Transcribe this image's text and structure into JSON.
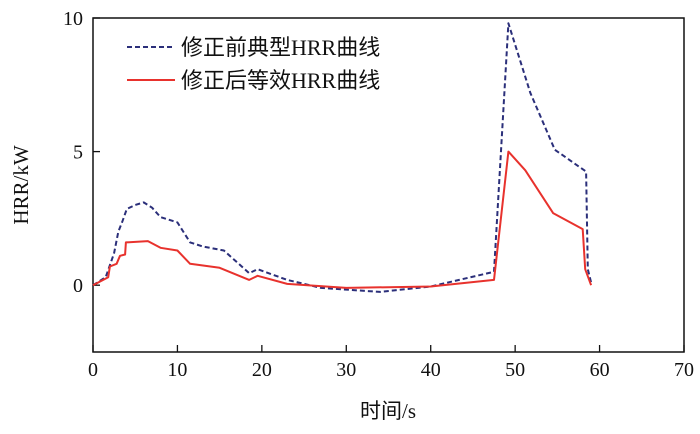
{
  "chart_data": {
    "type": "line",
    "title": "",
    "xlabel": "时间/s",
    "ylabel": "HRR/kW",
    "xlim": [
      0,
      70
    ],
    "ylim": [
      -2.5,
      10
    ],
    "xticks": [
      0,
      10,
      20,
      30,
      40,
      50,
      60,
      70
    ],
    "yticks": [
      0,
      5,
      10
    ],
    "grid": false,
    "legend_position": "top-left",
    "series": [
      {
        "name": "修正前典型HRR曲线",
        "style": "dashed",
        "color": "#2b2f7a",
        "x": [
          0,
          1.5,
          2.5,
          3,
          3.5,
          4,
          5,
          6,
          7,
          8,
          10,
          11.5,
          13,
          15.5,
          18.5,
          19.5,
          23,
          27,
          34,
          40,
          47.5,
          49.2,
          51.8,
          54.7,
          58.4,
          58.6,
          59
        ],
        "y": [
          0,
          0.3,
          1.2,
          2.0,
          2.4,
          2.85,
          3.0,
          3.1,
          2.9,
          2.55,
          2.35,
          1.6,
          1.45,
          1.3,
          0.45,
          0.6,
          0.2,
          -0.1,
          -0.25,
          -0.05,
          0.5,
          9.8,
          7.2,
          5.07,
          4.25,
          0.6,
          0.1
        ]
      },
      {
        "name": "修正后等效HRR曲线",
        "style": "solid",
        "color": "#e8322d",
        "x": [
          0,
          1.8,
          2.0,
          2.8,
          3.2,
          3.8,
          3.9,
          6.5,
          8,
          10,
          11.5,
          15,
          18.5,
          19.5,
          23,
          30,
          40,
          47.5,
          49.2,
          51.2,
          54.5,
          58.0,
          58.3,
          59
        ],
        "y": [
          0,
          0.3,
          0.7,
          0.8,
          1.1,
          1.15,
          1.6,
          1.65,
          1.4,
          1.3,
          0.8,
          0.65,
          0.2,
          0.35,
          0.05,
          -0.1,
          -0.05,
          0.2,
          5.0,
          4.3,
          2.7,
          2.1,
          0.6,
          0
        ]
      }
    ]
  }
}
